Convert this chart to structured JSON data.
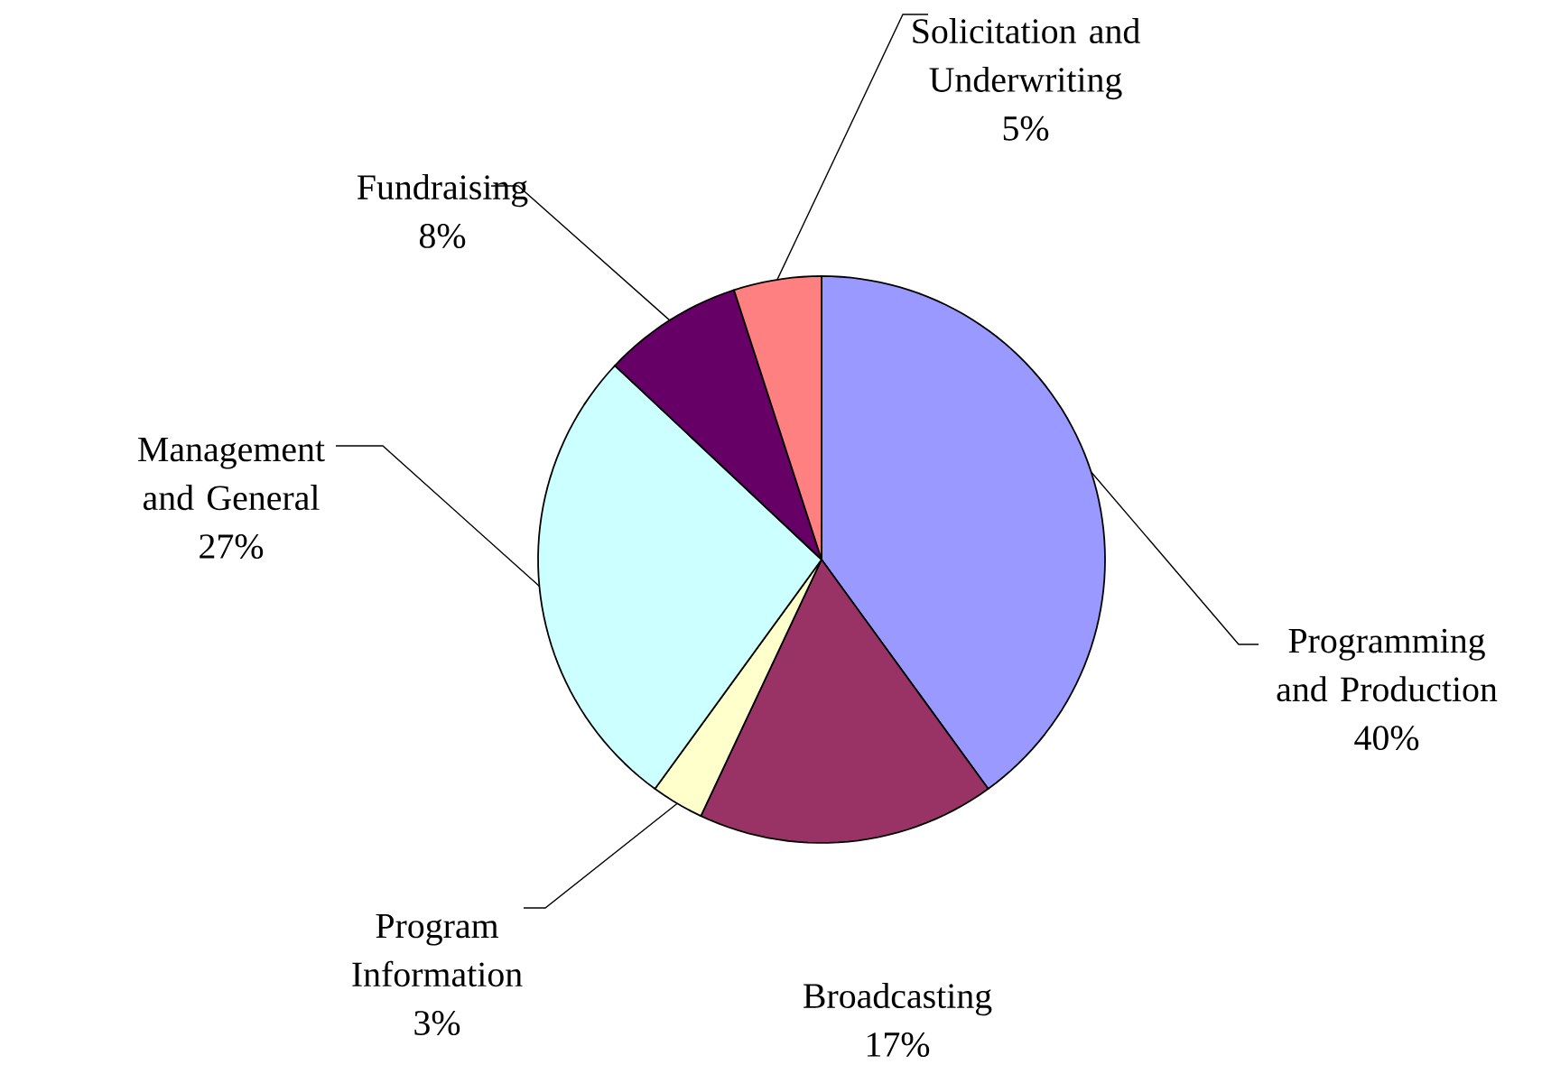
{
  "chart_data": {
    "type": "pie",
    "categories": [
      "Programming and Production",
      "Broadcasting",
      "Program Information",
      "Management and General",
      "Fundraising",
      "Solicitation and Underwriting"
    ],
    "values": [
      40,
      17,
      3,
      27,
      8,
      5
    ],
    "value_labels": [
      "40%",
      "17%",
      "3%",
      "27%",
      "8%",
      "5%"
    ],
    "colors": [
      "#9999ff",
      "#993366",
      "#ffffcc",
      "#ccffff",
      "#660066",
      "#ff8080"
    ]
  }
}
